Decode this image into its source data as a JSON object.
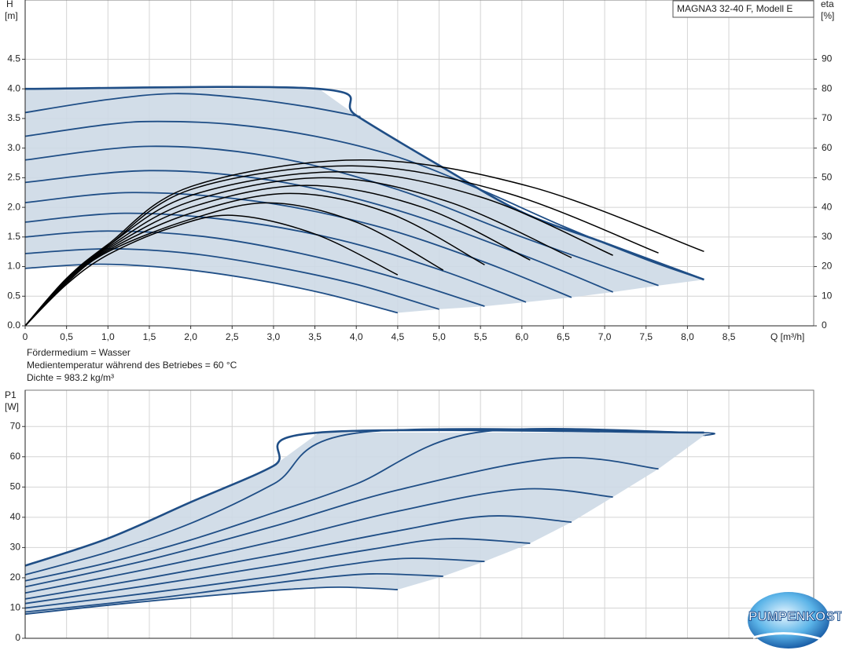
{
  "chart_data": [
    {
      "type": "line",
      "title": "MAGNA3 32-40 F, Modell E",
      "ylabel": [
        "H",
        "[m]"
      ],
      "y2label": [
        "eta",
        "[%]"
      ],
      "xlabel": "Q [m³/h]",
      "xlim": [
        0,
        9.525
      ],
      "xticks": [
        0,
        {
          "value": 0.5,
          "label": "0,5"
        },
        {
          "value": 1,
          "label": "1,0"
        },
        {
          "value": 1.5,
          "label": "1,5"
        },
        {
          "value": 2,
          "label": "2,0"
        },
        {
          "value": 2.5,
          "label": "2,5"
        },
        {
          "value": 3,
          "label": "3,0"
        },
        {
          "value": 3.5,
          "label": "3,5"
        },
        {
          "value": 4,
          "label": "4,0"
        },
        {
          "value": 4.5,
          "label": "4,5"
        },
        {
          "value": 5,
          "label": "5,0"
        },
        {
          "value": 5.5,
          "label": "5,5"
        },
        {
          "value": 6,
          "label": "6,0"
        },
        {
          "value": 6.5,
          "label": "6,5"
        },
        {
          "value": 7,
          "label": "7,0"
        },
        {
          "value": 7.5,
          "label": "7,5"
        },
        {
          "value": 8,
          "label": "8,0"
        },
        {
          "value": 8.5,
          "label": "8,5"
        }
      ],
      "ylim": [
        0,
        5.5
      ],
      "yticks": [
        {
          "value": 0,
          "label": "0.0"
        },
        0.5,
        {
          "value": 1,
          "label": "1.0"
        },
        1.5,
        {
          "value": 2,
          "label": "2.0"
        },
        2.5,
        {
          "value": 3,
          "label": "3.0"
        },
        3.5,
        {
          "value": 4,
          "label": "4.0"
        },
        4.5
      ],
      "y2lim": [
        0,
        110
      ],
      "y2ticks": [
        0,
        10,
        20,
        30,
        40,
        50,
        60,
        70,
        80,
        90
      ],
      "grid": true,
      "fill": "#cdd9e5",
      "annotations": [
        "Fördermedium = Wasser",
        "Medientemperatur während des Betriebes = 60 °C",
        "Dichte = 983.2 kg/m³"
      ],
      "series": [
        {
          "color": "#1f4e86",
          "x": [
            0,
            3.55,
            4.0,
            5,
            6,
            7,
            8.2
          ],
          "values": [
            4,
            4,
            3.55,
            2.71,
            1.92,
            1.4,
            0.78
          ]
        },
        {
          "color": "#1f4e86",
          "x": [
            0,
            1,
            1.8,
            2.6,
            3.4,
            4.05
          ],
          "values": [
            3.6,
            3.82,
            3.92,
            3.85,
            3.7,
            3.53
          ]
        },
        {
          "color": "#1f4e86",
          "x": [
            0,
            1,
            1.6,
            2.5,
            3.5,
            4.5,
            5.5,
            6.5,
            7.5,
            8.2
          ],
          "values": [
            3.2,
            3.4,
            3.45,
            3.4,
            3.2,
            2.85,
            2.3,
            1.68,
            1.12,
            0.78
          ]
        },
        {
          "color": "#1f4e86",
          "x": [
            0,
            1.5,
            3,
            4.5,
            6,
            7.65
          ],
          "values": [
            2.8,
            3.03,
            2.85,
            2.3,
            1.5,
            0.68
          ]
        },
        {
          "color": "#1f4e86",
          "x": [
            0,
            1.5,
            3,
            4.5,
            6,
            7.1
          ],
          "values": [
            2.42,
            2.62,
            2.45,
            1.95,
            1.2,
            0.57
          ]
        },
        {
          "color": "#1f4e86",
          "x": [
            0,
            1.3,
            2.8,
            4.2,
            5.5,
            6.6
          ],
          "values": [
            2.08,
            2.25,
            2.1,
            1.7,
            1.1,
            0.48
          ]
        },
        {
          "color": "#1f4e86",
          "x": [
            0,
            1.2,
            2.5,
            3.8,
            5,
            6.05
          ],
          "values": [
            1.75,
            1.9,
            1.78,
            1.45,
            0.95,
            0.4
          ]
        },
        {
          "color": "#1f4e86",
          "x": [
            0,
            1,
            2.2,
            3.4,
            4.5,
            5.55
          ],
          "values": [
            1.5,
            1.6,
            1.5,
            1.2,
            0.8,
            0.33
          ]
        },
        {
          "color": "#1f4e86",
          "x": [
            0,
            1,
            2,
            3,
            4,
            5
          ],
          "values": [
            1.22,
            1.3,
            1.22,
            1.0,
            0.7,
            0.28
          ]
        },
        {
          "color": "#1f4e86",
          "x": [
            0,
            0.9,
            1.8,
            2.7,
            3.6,
            4.5
          ],
          "values": [
            0.97,
            1.04,
            0.97,
            0.8,
            0.55,
            0.22
          ]
        }
      ],
      "eta_series": [
        {
          "color": "#000000",
          "axis": "y2",
          "x": [
            0,
            0.5,
            1,
            1.75,
            2.5,
            3.5,
            4.5
          ],
          "values": [
            0,
            14,
            24,
            33,
            37.3,
            31,
            17.2
          ]
        },
        {
          "color": "#000000",
          "axis": "y2",
          "x": [
            0,
            0.5,
            1,
            2,
            2.95,
            4,
            5.05
          ],
          "values": [
            0,
            14.5,
            25,
            36,
            41.5,
            35,
            18.8
          ]
        },
        {
          "color": "#000000",
          "axis": "y2",
          "x": [
            0,
            0.5,
            1,
            2,
            3.2,
            4.4,
            5.55
          ],
          "values": [
            0,
            15,
            25.5,
            38,
            44.7,
            38,
            20.6
          ]
        },
        {
          "color": "#000000",
          "axis": "y2",
          "x": [
            0,
            0.5,
            1,
            2,
            3.4,
            4.8,
            6.1
          ],
          "values": [
            0,
            15,
            26,
            40,
            47.4,
            40,
            22.2
          ]
        },
        {
          "color": "#000000",
          "axis": "y2",
          "x": [
            0,
            0.5,
            1,
            2,
            3.6,
            5.1,
            6.6
          ],
          "values": [
            0,
            15.5,
            26.5,
            42,
            50,
            42,
            23
          ]
        },
        {
          "color": "#000000",
          "axis": "y2",
          "x": [
            0,
            0.5,
            1,
            2,
            3.8,
            5.5,
            7.1
          ],
          "values": [
            0,
            15.5,
            27,
            44,
            52,
            43.5,
            23.8
          ]
        },
        {
          "color": "#000000",
          "axis": "y2",
          "x": [
            0,
            0.5,
            1,
            2,
            3.95,
            5.8,
            7.65
          ],
          "values": [
            0,
            16,
            27,
            46,
            54,
            45,
            24.6
          ]
        },
        {
          "color": "#000000",
          "axis": "y2",
          "x": [
            0,
            0.5,
            1,
            2,
            4.05,
            6.1,
            8.2
          ],
          "values": [
            0,
            16,
            27.5,
            47,
            56,
            47,
            25.1
          ]
        }
      ]
    },
    {
      "type": "line",
      "ylabel": [
        "P1",
        "[W]"
      ],
      "xlim": [
        0,
        9.525
      ],
      "ylim": [
        0,
        82
      ],
      "yticks": [
        0,
        10,
        20,
        30,
        40,
        50,
        60,
        70
      ],
      "grid": true,
      "fill": "#cdd9e5",
      "series": [
        {
          "color": "#1f4e86",
          "x": [
            0,
            1,
            2,
            3,
            3.55,
            8.2
          ],
          "values": [
            24,
            33,
            45,
            57,
            68,
            68
          ]
        },
        {
          "color": "#1f4e86",
          "x": [
            0,
            1,
            2,
            3,
            4.05,
            8.2
          ],
          "values": [
            21,
            28.5,
            38,
            51,
            68,
            68
          ]
        },
        {
          "color": "#1f4e86",
          "x": [
            0,
            1,
            2,
            3,
            4,
            5.45,
            8.1,
            8.2
          ],
          "values": [
            19,
            25,
            32.5,
            41.5,
            51,
            68,
            68,
            67
          ]
        },
        {
          "color": "#1f4e86",
          "x": [
            0,
            1.5,
            3,
            4.5,
            6.4,
            7.65
          ],
          "values": [
            17,
            26,
            37,
            49,
            59.5,
            56
          ]
        },
        {
          "color": "#1f4e86",
          "x": [
            0,
            1.5,
            3,
            4.5,
            6,
            7.1
          ],
          "values": [
            15,
            23,
            32,
            42,
            49.3,
            46.7
          ]
        },
        {
          "color": "#1f4e86",
          "x": [
            0,
            1.5,
            3,
            4.5,
            5.6,
            6.6
          ],
          "values": [
            13,
            20,
            27.5,
            35.5,
            40.4,
            38.4
          ]
        },
        {
          "color": "#1f4e86",
          "x": [
            0,
            1.5,
            3,
            4.2,
            5.1,
            6.1
          ],
          "values": [
            11.5,
            17.5,
            24,
            29.5,
            32.9,
            31.4
          ]
        },
        {
          "color": "#1f4e86",
          "x": [
            0,
            1.5,
            3,
            3.8,
            4.6,
            5.55
          ],
          "values": [
            10,
            15,
            20.5,
            24,
            26.4,
            25.4
          ]
        },
        {
          "color": "#1f4e86",
          "x": [
            0,
            1.5,
            2.8,
            3.5,
            4.2,
            5.05
          ],
          "values": [
            8.7,
            13,
            17.5,
            19.8,
            21.3,
            20.5
          ]
        },
        {
          "color": "#1f4e86",
          "x": [
            0,
            1.2,
            2.4,
            3.2,
            3.8,
            4.5
          ],
          "values": [
            8,
            11.5,
            14.5,
            16.2,
            16.9,
            16.1
          ]
        }
      ]
    }
  ],
  "logo": "PUMPENKOST"
}
